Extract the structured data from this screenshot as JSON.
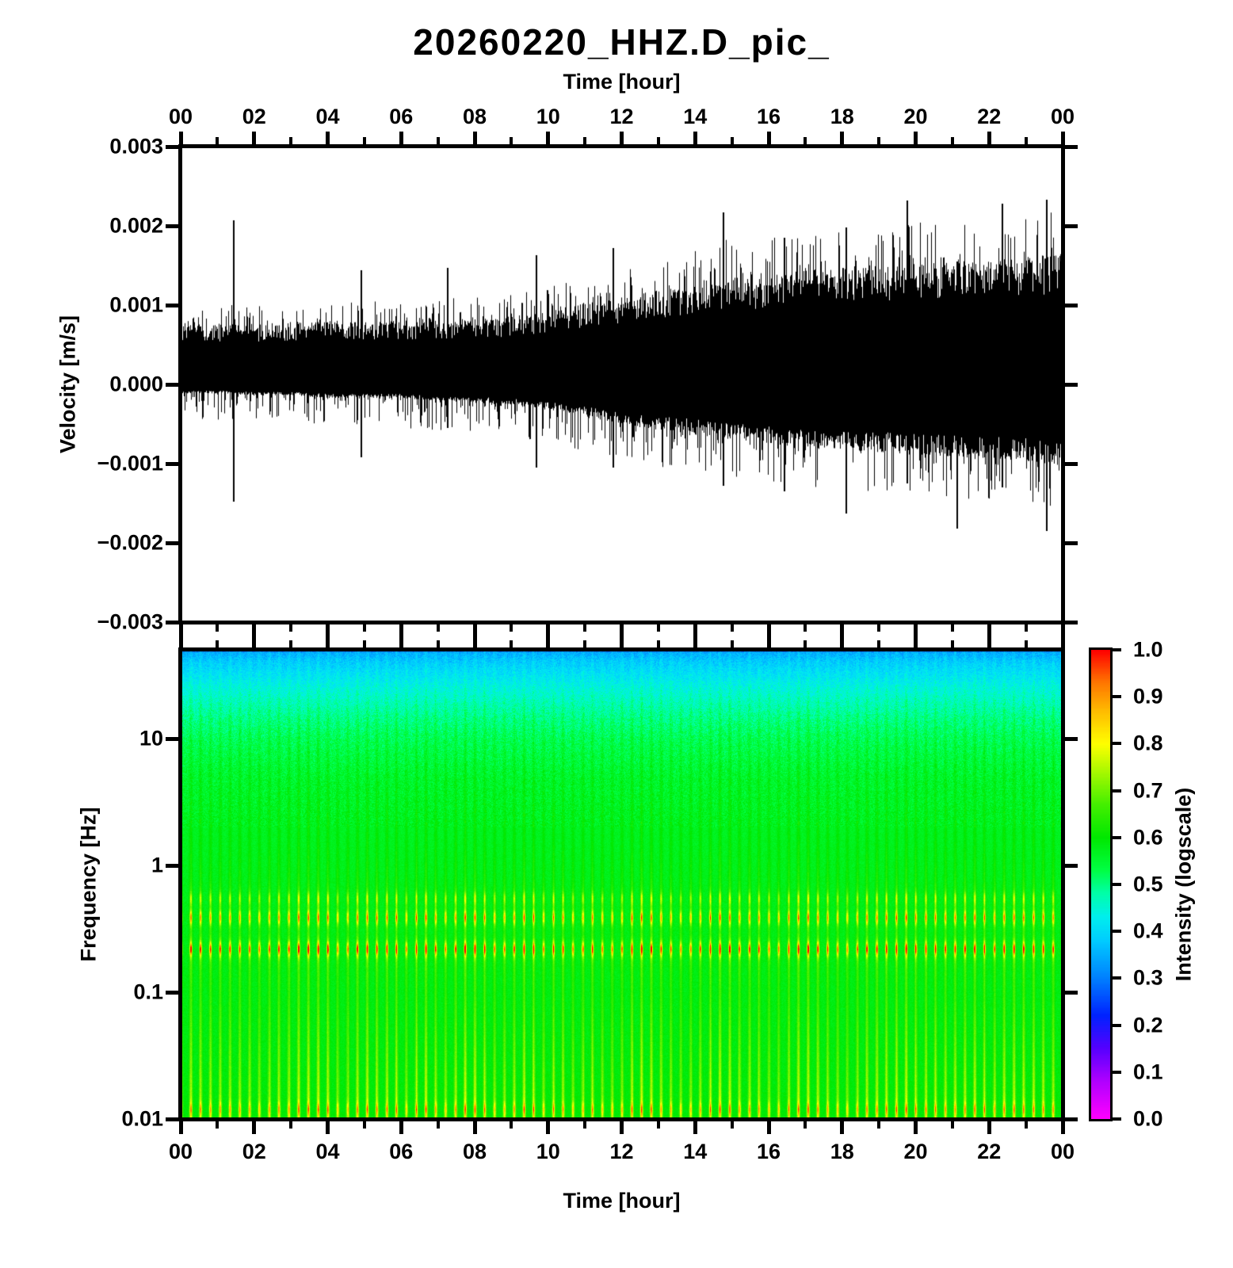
{
  "title": "20260220_HHZ.D_pic_",
  "axes": {
    "time": {
      "label": "Time [hour]",
      "tick_labels": [
        "00",
        "02",
        "04",
        "06",
        "08",
        "10",
        "12",
        "14",
        "16",
        "18",
        "20",
        "22",
        "00"
      ],
      "tick_hours": [
        0,
        2,
        4,
        6,
        8,
        10,
        12,
        14,
        16,
        18,
        20,
        22,
        24
      ],
      "minor_tick_hours": [
        1,
        3,
        5,
        7,
        9,
        11,
        13,
        15,
        17,
        19,
        21,
        23
      ]
    },
    "velocity": {
      "label": "Velocity [m/s]",
      "tick_labels": [
        "0.003",
        "0.002",
        "0.001",
        "0.000",
        "−0.001",
        "−0.002",
        "−0.003"
      ],
      "tick_values": [
        0.003,
        0.002,
        0.001,
        0.0,
        -0.001,
        -0.002,
        -0.003
      ]
    },
    "frequency": {
      "label": "Frequency [Hz]",
      "tick_labels": [
        "10",
        "1",
        "0.1",
        "0.01"
      ],
      "tick_values": [
        10,
        1,
        0.1,
        0.01
      ]
    }
  },
  "colorbar": {
    "label": "Intensity (logscale)",
    "tick_labels": [
      "1.0",
      "0.9",
      "0.8",
      "0.7",
      "0.6",
      "0.5",
      "0.4",
      "0.3",
      "0.2",
      "0.1",
      "0.0"
    ],
    "range": [
      0.0,
      1.0
    ]
  },
  "chart_data": [
    {
      "type": "line",
      "name": "seismogram",
      "title": "20260220_HHZ.D_pic_",
      "xlabel": "Time [hour]",
      "ylabel": "Velocity [m/s]",
      "xlim": [
        0,
        24
      ],
      "ylim": [
        -0.003,
        0.003
      ],
      "line_color": "#000000",
      "envelope_hours": [
        0,
        1,
        2,
        3,
        4,
        5,
        6,
        7,
        8,
        9,
        10,
        11,
        12,
        13,
        14,
        15,
        16,
        17,
        18,
        19,
        20,
        21,
        22,
        23,
        24
      ],
      "core_upper": [
        0.00065,
        0.00065,
        0.00067,
        0.00068,
        0.0007,
        0.0007,
        0.0007,
        0.00072,
        0.00072,
        0.00075,
        0.0008,
        0.0009,
        0.00095,
        0.00105,
        0.0011,
        0.00115,
        0.0012,
        0.00125,
        0.0013,
        0.0013,
        0.00132,
        0.00135,
        0.00138,
        0.0014,
        0.00142
      ],
      "core_lower": [
        -0.0001,
        -0.0001,
        -0.00012,
        -0.00012,
        -0.00015,
        -0.00015,
        -0.00015,
        -0.00018,
        -0.0002,
        -0.00022,
        -0.00028,
        -0.00035,
        -0.00045,
        -0.0005,
        -0.00055,
        -0.0006,
        -0.00065,
        -0.0007,
        -0.00072,
        -0.00075,
        -0.00078,
        -0.0008,
        -0.00082,
        -0.00085,
        -0.0009
      ],
      "peak_upper": [
        0.00095,
        0.001,
        0.001,
        0.00098,
        0.001,
        0.00105,
        0.00105,
        0.00108,
        0.0011,
        0.00115,
        0.00125,
        0.0014,
        0.0015,
        0.0016,
        0.0017,
        0.00185,
        0.0019,
        0.00195,
        0.00195,
        0.002,
        0.00205,
        0.00205,
        0.0021,
        0.00215,
        0.0022
      ],
      "peak_lower": [
        -0.00042,
        -0.00045,
        -0.00045,
        -0.00048,
        -0.0005,
        -0.00052,
        -0.00055,
        -0.00058,
        -0.0006,
        -0.00065,
        -0.00075,
        -0.00085,
        -0.00095,
        -0.00105,
        -0.00112,
        -0.0012,
        -0.00125,
        -0.0013,
        -0.00135,
        -0.0014,
        -0.00142,
        -0.00145,
        -0.00148,
        -0.0015,
        -0.00155
      ],
      "spikes": [
        {
          "hour": 1.42,
          "up": 0.00207,
          "down": -0.00148
        },
        {
          "hour": 4.9,
          "up": 0.00144,
          "down": -0.00092
        },
        {
          "hour": 7.25,
          "up": 0.00147,
          "down": -0.00055
        },
        {
          "hour": 9.65,
          "up": 0.00163,
          "down": -0.00105
        },
        {
          "hour": 11.75,
          "up": 0.00172,
          "down": -0.00105
        },
        {
          "hour": 14.75,
          "up": 0.00217,
          "down": -0.00128
        },
        {
          "hour": 16.4,
          "up": 0.00185,
          "down": -0.00135
        },
        {
          "hour": 18.1,
          "up": 0.00198,
          "down": -0.00163
        },
        {
          "hour": 19.75,
          "up": 0.00232,
          "down": -0.00125
        },
        {
          "hour": 21.1,
          "up": 0.00155,
          "down": -0.00182
        },
        {
          "hour": 22.35,
          "up": 0.00228,
          "down": -0.0013
        },
        {
          "hour": 23.55,
          "up": 0.00233,
          "down": -0.00185
        }
      ]
    },
    {
      "type": "heatmap",
      "name": "spectrogram",
      "xlabel": "Time [hour]",
      "ylabel": "Frequency [Hz]",
      "xlim": [
        0,
        24
      ],
      "freq_lim": [
        0.01,
        50
      ],
      "freq_scale": "log",
      "intensity_label": "Intensity (logscale)",
      "intensity_range": [
        0.0,
        1.0
      ],
      "stripes_per_hour": 3.75,
      "base_intensity_profile": [
        [
          52,
          0.33
        ],
        [
          40,
          0.38
        ],
        [
          25,
          0.44
        ],
        [
          15,
          0.49
        ],
        [
          10,
          0.52
        ],
        [
          5,
          0.55
        ],
        [
          2,
          0.565
        ],
        [
          1,
          0.57
        ],
        [
          0.5,
          0.575
        ],
        [
          0.2,
          0.58
        ],
        [
          0.1,
          0.58
        ],
        [
          0.03,
          0.585
        ],
        [
          0.01,
          0.595
        ]
      ],
      "stripe_amp_profile": [
        [
          52,
          0.025
        ],
        [
          20,
          0.03
        ],
        [
          5,
          0.04
        ],
        [
          1.5,
          0.05
        ],
        [
          0.8,
          0.07
        ],
        [
          0.55,
          0.1
        ],
        [
          0.39,
          0.13
        ],
        [
          0.3,
          0.1
        ],
        [
          0.22,
          0.15
        ],
        [
          0.15,
          0.11
        ],
        [
          0.1,
          0.1
        ],
        [
          0.05,
          0.13
        ],
        [
          0.02,
          0.17
        ],
        [
          0.01,
          0.19
        ]
      ],
      "hot_rows": [
        {
          "freq": 0.55,
          "amp": 0.16
        },
        {
          "freq": 0.39,
          "amp": 0.3
        },
        {
          "freq": 0.22,
          "amp": 0.4
        },
        {
          "freq": 0.012,
          "amp": 0.22
        }
      ],
      "colormap": [
        [
          0.0,
          "#ff00ff"
        ],
        [
          0.08,
          "#b000ff"
        ],
        [
          0.15,
          "#5500ff"
        ],
        [
          0.22,
          "#0022ff"
        ],
        [
          0.3,
          "#0080ff"
        ],
        [
          0.38,
          "#00ccff"
        ],
        [
          0.43,
          "#00eeee"
        ],
        [
          0.48,
          "#00ffaa"
        ],
        [
          0.53,
          "#00ff44"
        ],
        [
          0.6,
          "#00e800"
        ],
        [
          0.67,
          "#44ef00"
        ],
        [
          0.73,
          "#99f700"
        ],
        [
          0.8,
          "#ffff00"
        ],
        [
          0.87,
          "#ffbb00"
        ],
        [
          0.93,
          "#ff7700"
        ],
        [
          1.0,
          "#ff0000"
        ]
      ]
    }
  ]
}
